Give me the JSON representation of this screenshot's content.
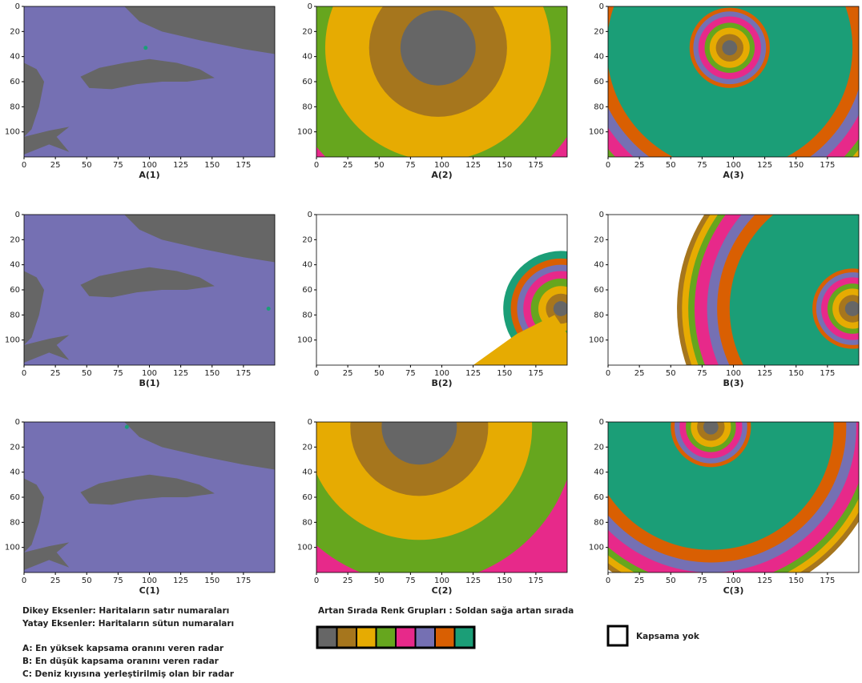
{
  "chart_data": [
    {
      "type": "heatmap",
      "title": "A(1)",
      "xlim": [
        0,
        200
      ],
      "ylim": [
        120,
        0
      ],
      "xticks": [
        0,
        25,
        50,
        75,
        100,
        125,
        150,
        175
      ],
      "yticks": [
        0,
        20,
        40,
        60,
        80,
        100
      ]
    },
    {
      "type": "heatmap",
      "title": "A(2)",
      "xlim": [
        0,
        200
      ],
      "ylim": [
        120,
        0
      ],
      "xticks": [
        0,
        25,
        50,
        75,
        100,
        125,
        150,
        175
      ],
      "yticks": [
        0,
        20,
        40,
        60,
        80,
        100
      ]
    },
    {
      "type": "heatmap",
      "title": "A(3)",
      "xlim": [
        0,
        200
      ],
      "ylim": [
        120,
        0
      ],
      "xticks": [
        0,
        25,
        50,
        75,
        100,
        125,
        150,
        175
      ],
      "yticks": [
        0,
        20,
        40,
        60,
        80,
        100
      ]
    },
    {
      "type": "heatmap",
      "title": "B(1)",
      "xlim": [
        0,
        200
      ],
      "ylim": [
        120,
        0
      ],
      "xticks": [
        0,
        25,
        50,
        75,
        100,
        125,
        150,
        175
      ],
      "yticks": [
        0,
        20,
        40,
        60,
        80,
        100
      ]
    },
    {
      "type": "heatmap",
      "title": "B(2)",
      "xlim": [
        0,
        200
      ],
      "ylim": [
        120,
        0
      ],
      "xticks": [
        0,
        25,
        50,
        75,
        100,
        125,
        150,
        175
      ],
      "yticks": [
        0,
        20,
        40,
        60,
        80,
        100
      ]
    },
    {
      "type": "heatmap",
      "title": "B(3)",
      "xlim": [
        0,
        200
      ],
      "ylim": [
        120,
        0
      ],
      "xticks": [
        0,
        25,
        50,
        75,
        100,
        125,
        150,
        175
      ],
      "yticks": [
        0,
        20,
        40,
        60,
        80,
        100
      ]
    },
    {
      "type": "heatmap",
      "title": "C(1)",
      "xlim": [
        0,
        200
      ],
      "ylim": [
        120,
        0
      ],
      "xticks": [
        0,
        25,
        50,
        75,
        100,
        125,
        150,
        175
      ],
      "yticks": [
        0,
        20,
        40,
        60,
        80,
        100
      ]
    },
    {
      "type": "heatmap",
      "title": "C(2)",
      "xlim": [
        0,
        200
      ],
      "ylim": [
        120,
        0
      ],
      "xticks": [
        0,
        25,
        50,
        75,
        100,
        125,
        150,
        175
      ],
      "yticks": [
        0,
        20,
        40,
        60,
        80,
        100
      ]
    },
    {
      "type": "heatmap",
      "title": "C(3)",
      "xlim": [
        0,
        200
      ],
      "ylim": [
        120,
        0
      ],
      "xticks": [
        0,
        25,
        50,
        75,
        100,
        125,
        150,
        175
      ],
      "yticks": [
        0,
        20,
        40,
        60,
        80,
        100
      ]
    }
  ],
  "notes": [
    "Dikey Eksenler: Haritaların satır numaraları",
    "Yatay Eksenler: Haritaların sütun numaraları",
    "A: En yüksek kapsama oranını veren radar",
    "B: En düşük kapsama oranını veren radar",
    "C: Deniz kıyısına yerleştirilmiş olan bir radar"
  ],
  "legend": {
    "title": "Artan Sırada Renk Grupları : Soldan sağa artan sırada",
    "colors": [
      "#666666",
      "#a6761d",
      "#e6ab02",
      "#66a61e",
      "#e7298a",
      "#7570b3",
      "#d95f02",
      "#1b9e77"
    ]
  },
  "no_coverage": "Kapsama yok"
}
